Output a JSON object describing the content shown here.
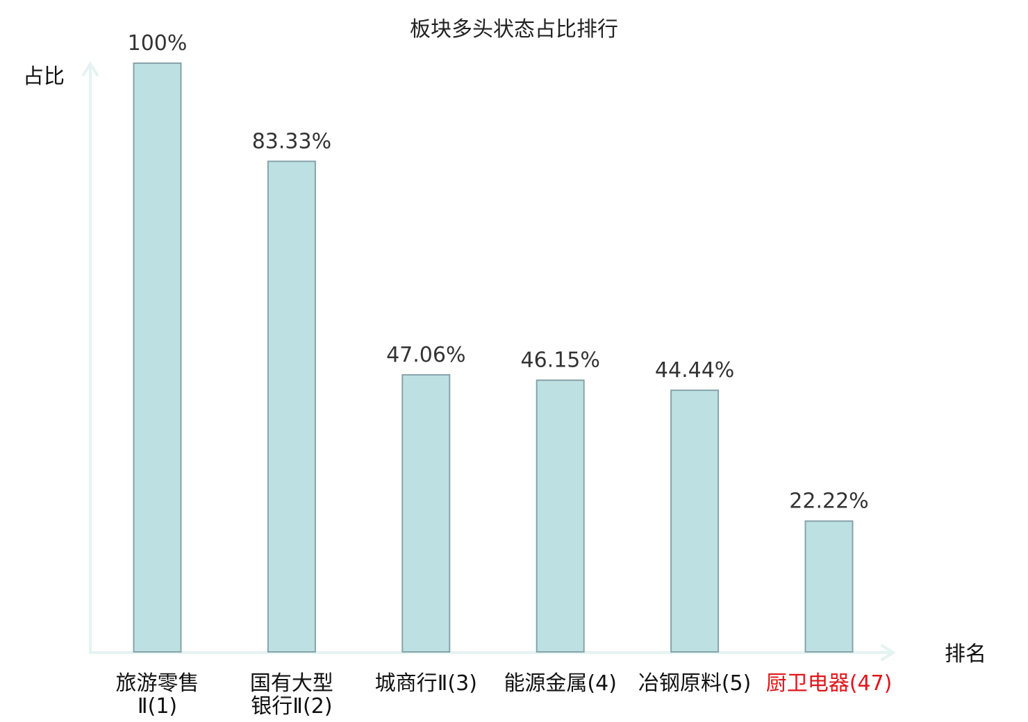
{
  "chart_data": {
    "type": "bar",
    "title": "板块多头状态占比排行",
    "ylabel": "占比",
    "xlabel": "排名",
    "ylim": [
      0,
      100
    ],
    "grid": false,
    "categories": [
      [
        "旅游零售",
        "Ⅱ(1)"
      ],
      [
        "国有大型",
        "银行Ⅱ(2)"
      ],
      [
        "城商行Ⅱ(3)"
      ],
      [
        "能源金属(4)"
      ],
      [
        "冶钢原料(5)"
      ],
      [
        "厨卫电器(47)"
      ]
    ],
    "values": [
      100,
      83.33,
      47.06,
      46.15,
      44.44,
      22.22
    ],
    "value_labels": [
      "100%",
      "83.33%",
      "47.06%",
      "46.15%",
      "44.44%",
      "22.22%"
    ],
    "highlight_index": 5,
    "colors": {
      "bar_fill": "#bde0e3",
      "bar_stroke": "#86a3a8",
      "axis": "#e4f3f1",
      "highlight_label": "#e0161b"
    }
  }
}
